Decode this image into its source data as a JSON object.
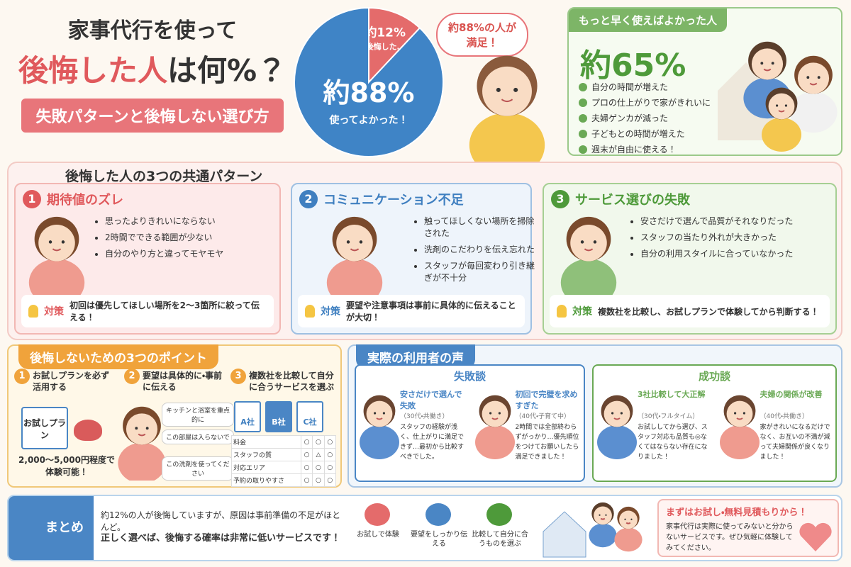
{
  "header": {
    "title_line1": "家事代行を使って",
    "title_highlight": "後悔した人",
    "title_rest": "は何%？",
    "subtitle": "失敗パターンと後悔しない選び方"
  },
  "pie": {
    "slices": [
      {
        "label": "約12%",
        "caption": "後悔した…",
        "value": 12,
        "color": "#e46b6b"
      },
      {
        "label": "約88%",
        "caption": "使ってよかった！",
        "value": 88,
        "color": "#3f84c6"
      }
    ]
  },
  "bubble": "約88%の人が満足！",
  "early": {
    "title": "もっと早く使えばよかった人",
    "value": "約65%",
    "items": [
      "自分の時間が増えた",
      "プロの仕上がりで家がきれいに",
      "夫婦ゲンカが減った",
      "子どもとの時間が増えた",
      "週末が自由に使える！"
    ]
  },
  "patterns": {
    "heading": "後悔した人の3つの共通パターン",
    "cards": [
      {
        "number": "1",
        "title": "期待値のズレ",
        "bullets": [
          "思ったよりきれいにならない",
          "2時間でできる範囲が少ない",
          "自分のやり方と違ってモヤモヤ"
        ],
        "tip_label": "対策",
        "tip": "初回は優先してほしい場所を2〜3箇所に絞って伝える！"
      },
      {
        "number": "2",
        "title": "コミュニケーション不足",
        "bullets": [
          "触ってほしくない場所を掃除された",
          "洗剤のこだわりを伝え忘れた",
          "スタッフが毎回変わり引き継ぎが不十分"
        ],
        "tip_label": "対策",
        "tip": "要望や注意事項は事前に具体的に伝えることが大切！"
      },
      {
        "number": "3",
        "title": "サービス選びの失敗",
        "bullets": [
          "安さだけで選んで品質がそれなりだった",
          "スタッフの当たり外れが大きかった",
          "自分の利用スタイルに合っていなかった"
        ],
        "tip_label": "対策",
        "tip": "複数社を比較し、お試しプランで体験してから判断する！"
      }
    ]
  },
  "points": {
    "heading": "後悔しないための3つのポイント",
    "items": [
      {
        "number": "1",
        "title": "お試しプランを必ず活用する"
      },
      {
        "number": "2",
        "title": "要望は具体的に・事前に伝える"
      },
      {
        "number": "3",
        "title": "複数社を比較して自分に合うサービスを選ぶ"
      }
    ],
    "trial_note": "お試しプラン",
    "price": "2,000〜5,000円程度で体験可能！",
    "requests": [
      "キッチンと浴室を重点的に",
      "この部屋は入らないで",
      "この洗剤を使ってください"
    ],
    "companies": [
      "A社",
      "B社",
      "C社"
    ],
    "compare": [
      [
        "料金",
        "○",
        "○",
        "○"
      ],
      [
        "スタッフの質",
        "○",
        "△",
        "○"
      ],
      [
        "対応エリア",
        "○",
        "○",
        "○"
      ],
      [
        "予約の取りやすさ",
        "○",
        "○",
        "○"
      ]
    ]
  },
  "voices": {
    "heading": "実際の利用者の声",
    "failure": {
      "label": "失敗談",
      "entries": [
        {
          "title": "安さだけで選んで失敗",
          "meta": "（30代・共働き）",
          "text": "スタッフの経験が浅く、仕上がりに満足できず…最初から比較すべきでした。"
        },
        {
          "title": "初回で完璧を求めすぎた",
          "meta": "（40代・子育て中）",
          "text": "2時間では全部終わらずがっかり…優先順位をつけてお願いしたら満足できました！"
        }
      ]
    },
    "success": {
      "label": "成功談",
      "entries": [
        {
          "title": "3社比較して大正解",
          "meta": "（30代・フルタイム）",
          "text": "お試ししてから選び、スタッフ対応も品質も◎なくてはならない存在になりました！"
        },
        {
          "title": "夫婦の関係が改善",
          "meta": "（40代・共働き）",
          "text": "家がきれいになるだけでなく、お互いの不満が減って夫婦関係が良くなりました！"
        }
      ]
    }
  },
  "summary": {
    "label": "まとめ",
    "line1": "約12%の人が後悔していますが、原因は事前準備の不足がほとんど。",
    "line2": "正しく選べば、後悔する確率は非常に低いサービスです！",
    "steps": [
      "お試しで体験",
      "要望をしっかり伝える",
      "比較して自分に合うものを選ぶ"
    ],
    "cta_title": "まずはお試し・無料見積もりから！",
    "cta_text": "家事代行は実際に使ってみないと分からないサービスです。ぜひ気軽に体験してみてください。"
  }
}
